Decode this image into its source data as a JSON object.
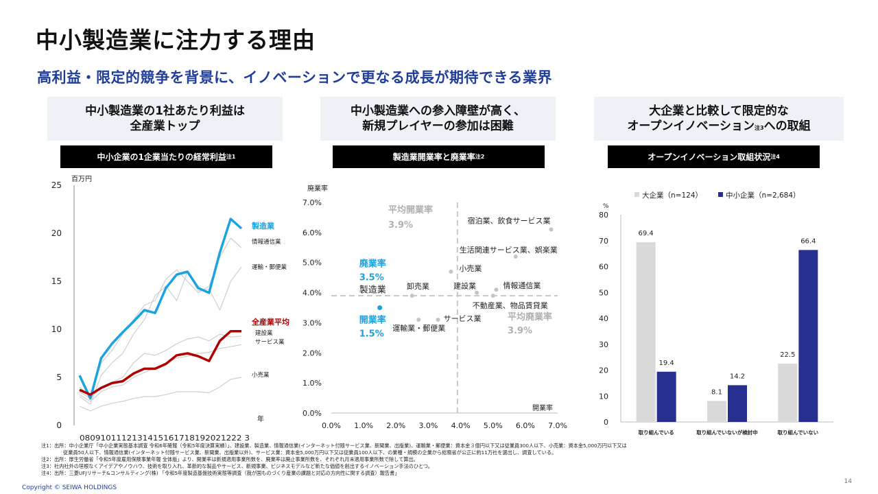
{
  "title": "中小製造業に注力する理由",
  "subtitle": "高利益・限定的競争を背景に、イノベーションで更なる成長が期待できる業界",
  "panels": {
    "left": {
      "heading_line1": "中小製造業の1社あたり利益は",
      "heading_line2": "全産業トップ",
      "bar_label": "中小企業の1企業当たりの経常利益",
      "bar_note": "注1"
    },
    "middle": {
      "heading_line1": "中小製造業への参入障壁が高く、",
      "heading_line2": "新規プレイヤーの参加は困難",
      "bar_label": "製造業開業率と廃業率",
      "bar_note": "注2"
    },
    "right": {
      "heading_line1": "大企業と比較して限定的な",
      "heading_line2a": "オープンイノベーション",
      "heading_note": "注3",
      "heading_line2b": "への取組",
      "bar_label": "オープンイノベーション取組状況",
      "bar_note": "注4"
    }
  },
  "chart_data": [
    {
      "type": "line",
      "ylabel": "百万円",
      "xlabel": "年",
      "ylim": [
        0,
        25
      ],
      "yticks": [
        "0",
        "5",
        "10",
        "15",
        "20",
        "25"
      ],
      "xtick_text": "0809101112131415161718192021222 3",
      "x": [
        "08",
        "09",
        "10",
        "11",
        "12",
        "13",
        "14",
        "15",
        "16",
        "17",
        "18",
        "19",
        "20",
        "21",
        "22",
        "23"
      ],
      "series": [
        {
          "name": "製造業",
          "color": "#1aa3e0",
          "highlight": true,
          "values": [
            5.2,
            2.8,
            7.0,
            8.5,
            9.7,
            10.8,
            12.0,
            11.7,
            14.3,
            15.7,
            16.0,
            14.3,
            13.8,
            18.0,
            21.5,
            20.5
          ]
        },
        {
          "name": "全産業平均",
          "color": "#b00000",
          "highlight": true,
          "values": [
            3.7,
            3.2,
            3.9,
            4.4,
            4.6,
            5.4,
            5.9,
            5.9,
            6.4,
            7.3,
            7.5,
            7.2,
            6.7,
            8.8,
            9.8,
            9.8
          ]
        },
        {
          "name": "情報通信業",
          "color": "#cfcfcf",
          "values": [
            4.0,
            3.0,
            6.5,
            7.8,
            9.5,
            11.0,
            12.5,
            13.0,
            15.2,
            16.2,
            15.0,
            13.8,
            14.5,
            17.5,
            19.5,
            18.5
          ]
        },
        {
          "name": "運輸・郵便業",
          "color": "#cfcfcf",
          "values": [
            3.0,
            2.2,
            5.2,
            6.5,
            7.5,
            9.5,
            11.0,
            13.5,
            14.5,
            13.0,
            16.0,
            14.0,
            14.2,
            12.0,
            15.0,
            16.5
          ]
        },
        {
          "name": "建設業",
          "color": "#cfcfcf",
          "values": [
            3.5,
            2.8,
            4.0,
            4.5,
            5.0,
            6.5,
            7.5,
            7.3,
            7.8,
            8.5,
            9.0,
            9.2,
            8.8,
            9.5,
            9.2,
            9.3
          ]
        },
        {
          "name": "サービス業",
          "color": "#cfcfcf",
          "values": [
            3.2,
            2.5,
            3.5,
            4.0,
            4.2,
            5.0,
            5.5,
            6.0,
            6.5,
            7.0,
            7.2,
            7.5,
            7.6,
            8.0,
            8.2,
            8.4
          ]
        },
        {
          "name": "小売業",
          "color": "#cfcfcf",
          "values": [
            2.0,
            1.5,
            2.0,
            2.3,
            2.5,
            2.8,
            3.0,
            3.0,
            3.2,
            3.5,
            3.5,
            3.5,
            3.4,
            4.0,
            4.8,
            5.0
          ]
        }
      ]
    },
    {
      "type": "scatter",
      "xlabel": "開業率",
      "ylabel": "廃業率",
      "xlim": [
        0,
        7
      ],
      "ylim": [
        0,
        7
      ],
      "xticks": [
        "0.0%",
        "1.0%",
        "2.0%",
        "3.0%",
        "4.0%",
        "5.0%",
        "6.0%",
        "7.0%"
      ],
      "yticks": [
        "0.0%",
        "1.0%",
        "2.0%",
        "3.0%",
        "4.0%",
        "5.0%",
        "6.0%",
        "7.0%"
      ],
      "avg_open": {
        "value": 3.9,
        "label1": "平均開業率",
        "label2": "3.9%"
      },
      "avg_close": {
        "value": 3.9,
        "label1": "平均廃業率",
        "label2": "3.9%"
      },
      "manufacturing": {
        "label": "製造業",
        "x": 1.5,
        "y": 3.5,
        "close_label1": "廃業率",
        "close_label2": "3.5%",
        "open_label1": "開業率",
        "open_label2": "1.5%"
      },
      "points": [
        {
          "label": "宿泊業、飲食サービス業",
          "x": 6.8,
          "y": 6.1
        },
        {
          "label": "生活関連サービス業、娯楽業",
          "x": 5.7,
          "y": 5.2
        },
        {
          "label": "小売業",
          "x": 3.7,
          "y": 4.7
        },
        {
          "label": "卸売業",
          "x": 2.5,
          "y": 3.9
        },
        {
          "label": "建設業",
          "x": 4.5,
          "y": 4.0
        },
        {
          "label": "情報通信業",
          "x": 5.1,
          "y": 4.1
        },
        {
          "label": "不動産業、物品賃貸業",
          "x": 5.0,
          "y": 3.9
        },
        {
          "label": "サービス業",
          "x": 3.3,
          "y": 3.1
        },
        {
          "label": "運輸業・郵便業",
          "x": 2.7,
          "y": 3.1
        }
      ]
    },
    {
      "type": "bar",
      "ylabel": "%",
      "ylim": [
        0,
        80
      ],
      "yticks": [
        "0",
        "10",
        "20",
        "30",
        "40",
        "50",
        "60",
        "70",
        "80"
      ],
      "categories": [
        "取り組んでいる",
        "取り組んでいないが検討中",
        "取り組んでいない"
      ],
      "series": [
        {
          "name": "大企業（n=124）",
          "color": "#d9d9d9",
          "values": [
            69.4,
            8.1,
            22.5
          ]
        },
        {
          "name": "中小企業（n=2,684）",
          "color": "#27308f",
          "values": [
            19.4,
            14.2,
            66.4
          ]
        }
      ]
    }
  ],
  "notes": [
    "注1：出所：中小企業庁「中小企業実態基本調査 令和6年確報（令和5年度決算実績）」、建設業、製造業、情報通信業(インターネット付随サービス業、新聞業、出版業)、運輸業・郵便業：資本金３億円以下又は従業員300人以下、小売業：資本金5,000万円以下又は",
    "従業員50人以下、情報通信業(インターネット付随サービス業、新聞業、出版業以外)、サービス業：資本金5,000万円以下又は従業員100人以下、の業種・規模の企業から総務省が公正に約11万社を選出し、調査している。",
    "注2：出所：厚生労働省「令和5年度雇用保険事業年報 全体版」より、開業率は新規適用事業所数を、廃業率は廃止事業所数を、それぞれ月末適用事業所数で除して算出。",
    "注3：社内社外の垣根なくアイデアやノウハウ、技術を取り入れ、革新的な製品やサービス、新規事業、ビジネスモデルなど新たな価値を創出するイノベーション手法のひとつ。",
    "注4：出所：三菱UFJリサーチ&コンサルティング(株) 「令和5年度製造基盤技術実態等調査（我が国ものづくり産業の課題と対応の方向性に関する調査）報告書」"
  ],
  "copyright": "Copyright © SEIWA HOLDINGS",
  "page_number": "14"
}
